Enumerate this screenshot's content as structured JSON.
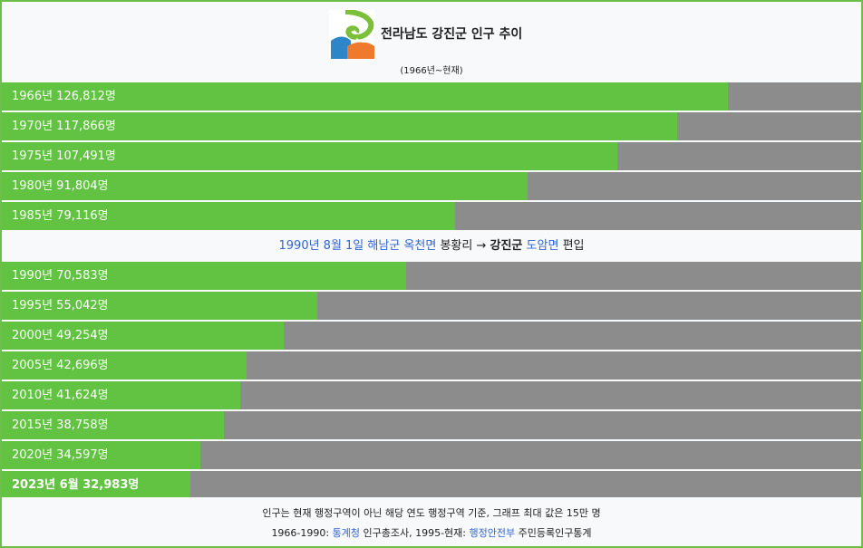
{
  "header": {
    "title": "전라남도 강진군 인구 추이",
    "subtitle": "(1966년~현재)",
    "logo_colors": {
      "blue": "#2e86c8",
      "orange": "#ef7a2d",
      "green": "#7cbf3a"
    }
  },
  "colors": {
    "bar": "#62c343",
    "track": "#8c8c8c",
    "border": "#6cc04a",
    "link": "#3366cc"
  },
  "chart_data": {
    "type": "bar",
    "orientation": "horizontal",
    "xlim": [
      0,
      150000
    ],
    "grid": false,
    "legend": "none",
    "categories": [
      "1966년",
      "1970년",
      "1975년",
      "1980년",
      "1985년",
      "1990년",
      "1995년",
      "2000년",
      "2005년",
      "2010년",
      "2015년",
      "2020년",
      "2023년 6월"
    ],
    "values": [
      126812,
      117866,
      107491,
      91804,
      79116,
      70583,
      55042,
      49254,
      42696,
      41624,
      38758,
      34597,
      32983
    ],
    "labels": [
      "1966년 126,812명",
      "1970년 117,866명",
      "1975년 107,491명",
      "1980년 91,804명",
      "1985년 79,116명",
      "1990년 70,583명",
      "1995년 55,042명",
      "2000년 49,254명",
      "2005년 42,696명",
      "2010년 41,624명",
      "2015년 38,758명",
      "2020년 34,597명",
      "2023년 6월 32,983명"
    ],
    "annotation": {
      "after_category": "1985년",
      "parts": [
        {
          "text": "1990년 8월 1일",
          "link": true,
          "bold": false
        },
        {
          "text": " ",
          "link": false,
          "bold": false
        },
        {
          "text": "해남군",
          "link": true,
          "bold": false
        },
        {
          "text": " ",
          "link": false,
          "bold": false
        },
        {
          "text": "옥천면",
          "link": true,
          "bold": false
        },
        {
          "text": " 봉황리 → ",
          "link": false,
          "bold": false
        },
        {
          "text": "강진군",
          "link": false,
          "bold": true
        },
        {
          "text": " ",
          "link": false,
          "bold": false
        },
        {
          "text": "도암면",
          "link": true,
          "bold": false
        },
        {
          "text": " 편입",
          "link": false,
          "bold": false
        }
      ]
    }
  },
  "footer": {
    "line1": "인구는 현재 행정구역이 아닌 해당 연도 행정구역 기준, 그래프 최대 값은 15만 명",
    "line2_a": "1966-1990: ",
    "line2_link1": "통계청",
    "line2_b": " 인구총조사, 1995-현재: ",
    "line2_link2": "행정안전부",
    "line2_c": " 주민등록인구통계"
  }
}
